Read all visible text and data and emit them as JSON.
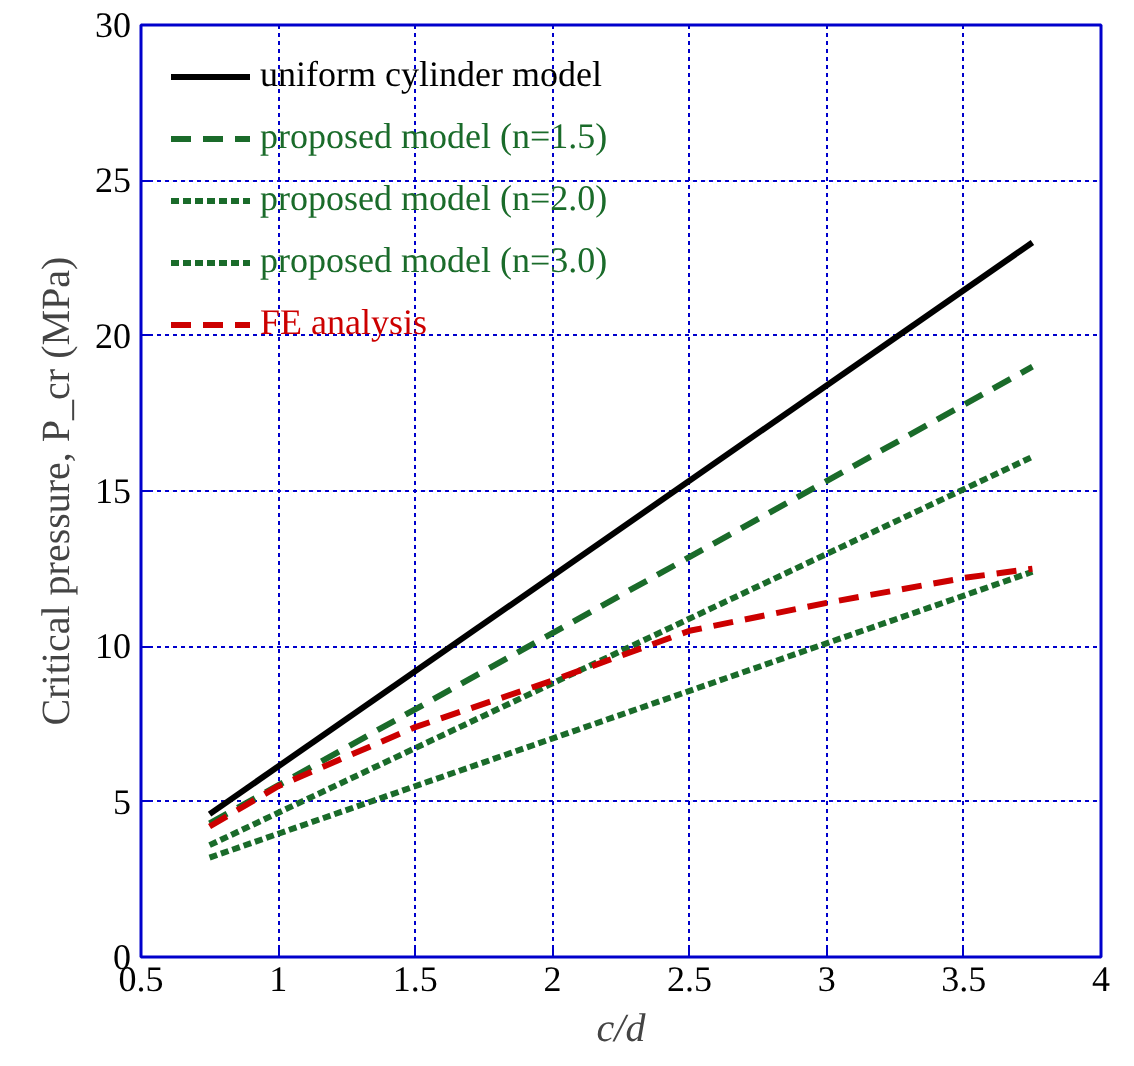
{
  "chart_data": {
    "type": "line",
    "xlabel": "c/d",
    "ylabel": "Critical pressure, P_cr (MPa)",
    "xlim": [
      0.5,
      4
    ],
    "ylim": [
      0,
      30
    ],
    "xticks": [
      0.5,
      1,
      1.5,
      2,
      2.5,
      3,
      3.5,
      4
    ],
    "yticks": [
      0,
      5,
      10,
      15,
      20,
      25,
      30
    ],
    "grid": true,
    "legend": "top left",
    "series": [
      {
        "name": "uniform cylinder model",
        "color": "#000000",
        "line_style": "solid",
        "x": [
          0.75,
          3.75
        ],
        "values": [
          4.6,
          23.0
        ]
      },
      {
        "name": "proposed model (n=1.5)",
        "color": "#1a6b2a",
        "line_style": "dashed",
        "x": [
          0.75,
          3.75
        ],
        "values": [
          4.3,
          19.0
        ]
      },
      {
        "name": "proposed model (n=2.0)",
        "color": "#1a6b2a",
        "line_style": "dotted",
        "x": [
          0.75,
          3.75
        ],
        "values": [
          3.6,
          16.1
        ]
      },
      {
        "name": "proposed model (n=3.0)",
        "color": "#1a6b2a",
        "line_style": "dotted",
        "x": [
          0.75,
          3.75
        ],
        "values": [
          3.2,
          12.4
        ]
      },
      {
        "name": "FE analysis",
        "color": "#cc0000",
        "line_style": "dashed",
        "x": [
          0.75,
          1,
          1.5,
          2,
          2.5,
          3,
          3.5,
          3.75
        ],
        "values": [
          4.2,
          5.5,
          7.4,
          8.9,
          10.5,
          11.4,
          12.2,
          12.5
        ]
      }
    ]
  }
}
